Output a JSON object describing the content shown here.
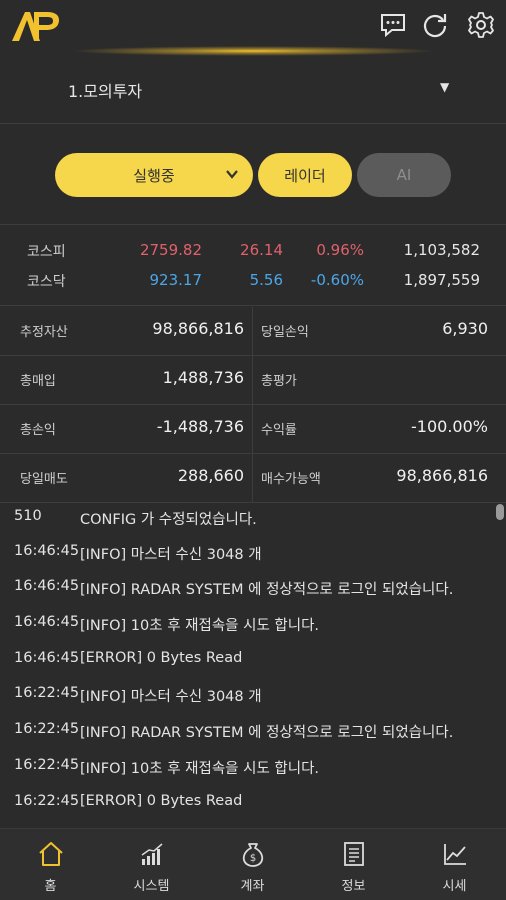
{
  "header": {
    "logo_text": "AP",
    "icons": [
      "chat-icon",
      "refresh-icon",
      "gear-icon"
    ],
    "accent": "#f2c12e"
  },
  "account": {
    "label": "1.모의투자",
    "caret": "▼"
  },
  "controls": {
    "run_label": "실행중",
    "radar_label": "레이더",
    "ai_label": "AI"
  },
  "indices": [
    {
      "name": "코스피",
      "value": "2759.82",
      "change": "26.14",
      "percent": "0.96%",
      "volume": "1,103,582",
      "trend": "up"
    },
    {
      "name": "코스닥",
      "value": "923.17",
      "change": "5.56",
      "percent": "-0.60%",
      "volume": "1,897,559",
      "trend": "down"
    }
  ],
  "summary": {
    "est_assets": {
      "label": "추정자산",
      "value": "98,866,816"
    },
    "daily_pl": {
      "label": "당일손익",
      "value": "6,930"
    },
    "total_buy": {
      "label": "총매입",
      "value": "1,488,736"
    },
    "total_eval": {
      "label": "총평가",
      "value": ""
    },
    "total_pl": {
      "label": "총손익",
      "value": "-1,488,736"
    },
    "return_rate": {
      "label": "수익률",
      "value": "-100.00%"
    },
    "daily_sell": {
      "label": "당일매도",
      "value": "288,660"
    },
    "buy_power": {
      "label": "매수가능액",
      "value": "98,866,816"
    }
  },
  "log": [
    {
      "time": "510",
      "msg": "CONFIG 가 수정되었습니다."
    },
    {
      "time": "16:46:45",
      "msg": "[INFO] 마스터 수신 3048 개"
    },
    {
      "time": "16:46:45",
      "msg": "[INFO] RADAR SYSTEM 에 정상적으로 로그인 되었습니다."
    },
    {
      "time": "16:46:45",
      "msg": "[INFO] 10초 후 재접속을 시도 합니다."
    },
    {
      "time": "16:46:45",
      "msg": "[ERROR] 0 Bytes Read"
    },
    {
      "time": "16:22:45",
      "msg": "[INFO] 마스터 수신 3048 개"
    },
    {
      "time": "16:22:45",
      "msg": "[INFO] RADAR SYSTEM 에 정상적으로 로그인 되었습니다."
    },
    {
      "time": "16:22:45",
      "msg": "[INFO] 10초 후 재접속을 시도 합니다."
    },
    {
      "time": "16:22:45",
      "msg": "[ERROR] 0 Bytes Read"
    }
  ],
  "tabs": [
    {
      "label": "홈",
      "icon": "home-icon",
      "active": true
    },
    {
      "label": "시스템",
      "icon": "bar-chart-icon"
    },
    {
      "label": "계좌",
      "icon": "money-bag-icon"
    },
    {
      "label": "정보",
      "icon": "document-icon"
    },
    {
      "label": "시세",
      "icon": "line-chart-icon"
    }
  ],
  "colors": {
    "background": "#2b2b2b",
    "pill_yellow": "#f6d64a",
    "pill_gray": "#5b5b5b",
    "up": "#e0616b",
    "down": "#4ca6e8"
  }
}
